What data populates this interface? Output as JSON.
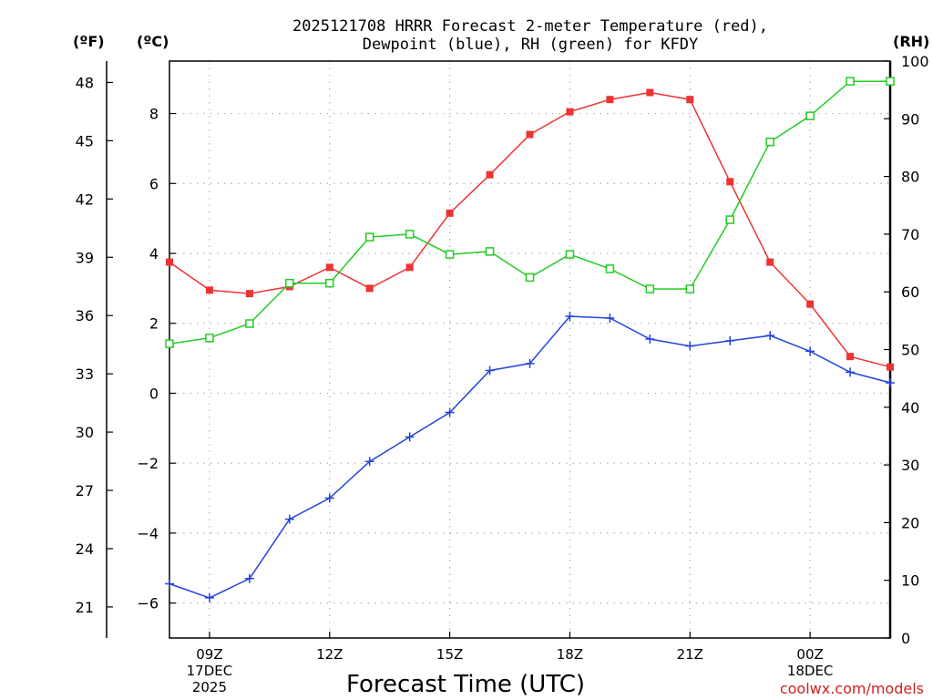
{
  "chart_data": {
    "type": "line",
    "title_lines": [
      "2025121708 HRRR Forecast 2-meter Temperature (red),",
      "Dewpoint (blue), RH (green) for KFDY"
    ],
    "xlabel": "Forecast Time (UTC)",
    "credit": "coolwx.com/models",
    "unit_labels": {
      "fahrenheit": "(ºF)",
      "celsius": "(ºC)",
      "rh": "(RH)"
    },
    "x_range_hours": [
      8,
      26
    ],
    "x_ticks": [
      {
        "hour": 9,
        "lines": [
          "09Z",
          "17DEC",
          "2025"
        ]
      },
      {
        "hour": 12,
        "lines": [
          "12Z"
        ]
      },
      {
        "hour": 15,
        "lines": [
          "15Z"
        ]
      },
      {
        "hour": 18,
        "lines": [
          "18Z"
        ]
      },
      {
        "hour": 21,
        "lines": [
          "21Z"
        ]
      },
      {
        "hour": 24,
        "lines": [
          "00Z",
          "18DEC"
        ]
      }
    ],
    "celsius_axis": {
      "range": [
        -7.0,
        9.5
      ],
      "ticks": [
        "8",
        "6",
        "4",
        "2",
        "0",
        "−2",
        "−4",
        "−6"
      ],
      "tick_values": [
        8,
        6,
        4,
        2,
        0,
        -2,
        -4,
        -6
      ]
    },
    "fahrenheit_axis": {
      "ticks": [
        "48",
        "45",
        "42",
        "39",
        "36",
        "33",
        "30",
        "27",
        "24",
        "21"
      ],
      "tick_values": [
        48,
        45,
        42,
        39,
        36,
        33,
        30,
        27,
        24,
        21
      ]
    },
    "rh_axis": {
      "range": [
        0,
        100
      ],
      "ticks": [
        "100",
        "90",
        "80",
        "70",
        "60",
        "50",
        "40",
        "30",
        "20",
        "10",
        "0"
      ],
      "tick_values": [
        100,
        90,
        80,
        70,
        60,
        50,
        40,
        30,
        20,
        10,
        0
      ]
    },
    "series": [
      {
        "name": "Temperature",
        "axis": "celsius",
        "color": "#ee3333",
        "marker": "filled-square",
        "x": [
          8,
          9,
          10,
          11,
          12,
          13,
          14,
          15,
          16,
          17,
          18,
          19,
          20,
          21,
          22,
          23,
          24,
          25,
          26
        ],
        "values": [
          3.75,
          2.95,
          2.85,
          3.05,
          3.6,
          3.0,
          3.6,
          5.15,
          6.25,
          7.4,
          8.05,
          8.4,
          8.6,
          8.4,
          6.05,
          3.75,
          2.55,
          1.05,
          0.75
        ]
      },
      {
        "name": "Dewpoint",
        "axis": "celsius",
        "color": "#2244dd",
        "marker": "plus",
        "x": [
          8,
          9,
          10,
          11,
          12,
          13,
          14,
          15,
          16,
          17,
          18,
          19,
          20,
          21,
          22,
          23,
          24,
          25,
          26
        ],
        "values": [
          -5.45,
          -5.85,
          -5.3,
          -3.6,
          -3.0,
          -1.95,
          -1.25,
          -0.55,
          0.65,
          0.85,
          2.2,
          2.15,
          1.55,
          1.35,
          1.5,
          1.65,
          1.2,
          0.6,
          0.3
        ]
      },
      {
        "name": "RH",
        "axis": "rh",
        "color": "#22cc22",
        "marker": "open-square",
        "x": [
          8,
          9,
          10,
          11,
          12,
          13,
          14,
          15,
          16,
          17,
          18,
          19,
          20,
          21,
          22,
          23,
          24,
          25,
          26
        ],
        "values": [
          51,
          52,
          54.5,
          61.5,
          61.5,
          69.5,
          70,
          66.5,
          67,
          62.5,
          66.5,
          64,
          60.5,
          60.5,
          72.5,
          86,
          90.5,
          96.5,
          96.5
        ]
      }
    ]
  }
}
